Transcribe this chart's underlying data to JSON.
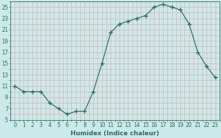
{
  "x": [
    0,
    1,
    2,
    3,
    4,
    5,
    6,
    7,
    8,
    9,
    10,
    11,
    12,
    13,
    14,
    15,
    16,
    17,
    18,
    19,
    20,
    21,
    22,
    23
  ],
  "y": [
    11,
    10,
    10,
    10,
    8,
    7,
    6,
    6.5,
    6.5,
    10,
    15,
    20.5,
    22,
    22.5,
    23,
    23.5,
    25,
    25.5,
    25,
    24.5,
    22,
    17,
    14.5,
    12.5
  ],
  "line_color": "#2d6b5e",
  "marker": "D",
  "marker_size": 2.2,
  "bg_color": "#cce9ea",
  "grid_color": "#d8b8b8",
  "xlabel": "Humidex (Indice chaleur)",
  "xlim": [
    -0.5,
    23.5
  ],
  "ylim": [
    5,
    26
  ],
  "yticks": [
    5,
    7,
    9,
    11,
    13,
    15,
    17,
    19,
    21,
    23,
    25
  ],
  "xticks": [
    0,
    1,
    2,
    3,
    4,
    5,
    6,
    7,
    8,
    9,
    10,
    11,
    12,
    13,
    14,
    15,
    16,
    17,
    18,
    19,
    20,
    21,
    22,
    23
  ],
  "xlabel_fontsize": 6.5,
  "tick_fontsize": 5.5
}
